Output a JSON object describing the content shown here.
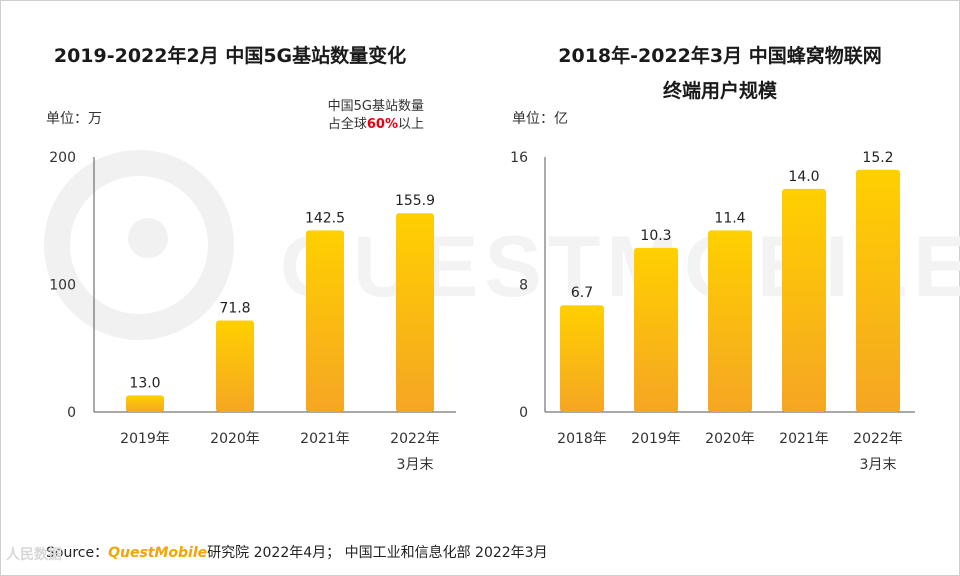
{
  "watermark": {
    "text": "QUESTMOBILE"
  },
  "chart_data": [
    {
      "type": "bar",
      "title": "2019-2022年2月 中国5G基站数量变化",
      "unit_label": "单位：万",
      "annotation": {
        "line1": "中国5G基站数量",
        "line2_prefix": "占全球",
        "line2_highlight": "60%",
        "line2_suffix": "以上"
      },
      "categories": [
        "2019年",
        "2020年",
        "2021年",
        "2022年"
      ],
      "category_sublabels": [
        "",
        "",
        "",
        "3月末"
      ],
      "values": [
        13.0,
        71.8,
        142.5,
        155.9
      ],
      "value_labels": [
        "13.0",
        "71.8",
        "142.5",
        "155.9"
      ],
      "yticks": [
        "0",
        "100",
        "200"
      ],
      "ylim": [
        0,
        200
      ],
      "xlabel": "",
      "ylabel": ""
    },
    {
      "type": "bar",
      "title": "2018年-2022年3月 中国蜂窝物联网",
      "title_line2": "终端用户规模",
      "unit_label": "单位：亿",
      "categories": [
        "2018年",
        "2019年",
        "2020年",
        "2021年",
        "2022年"
      ],
      "category_sublabels": [
        "",
        "",
        "",
        "",
        "3月末"
      ],
      "values": [
        6.7,
        10.3,
        11.4,
        14.0,
        15.2
      ],
      "value_labels": [
        "6.7",
        "10.3",
        "11.4",
        "14.0",
        "15.2"
      ],
      "yticks": [
        "0",
        "8",
        "16"
      ],
      "ylim": [
        0,
        16
      ],
      "xlabel": "",
      "ylabel": ""
    }
  ],
  "source": {
    "prefix": "Source：",
    "brand": "QuestMobile",
    "rest": "研究院 2022年4月；  中国工业和信息化部 2022年3月"
  },
  "stamp": "人民数据",
  "colors": {
    "bar_top": "#ffd000",
    "bar_bottom": "#f5a623",
    "axis": "#555555",
    "highlight": "#e60012"
  }
}
